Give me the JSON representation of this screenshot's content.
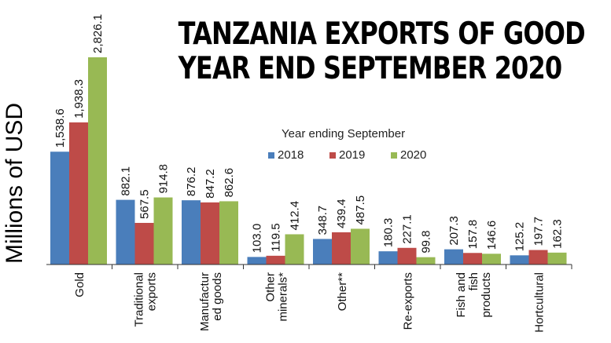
{
  "chart_data": {
    "type": "bar",
    "title": [
      "TANZANIA EXPORTS OF GOOD",
      "YEAR END SEPTEMBER 2020"
    ],
    "xlabel": "",
    "ylabel": "Millions of USD",
    "legend_title": "Year ending September",
    "legend_position": "top-center",
    "grid": false,
    "ylim": [
      0,
      2826.1
    ],
    "categories": [
      [
        "Gold"
      ],
      [
        "Traditional",
        "exports"
      ],
      [
        "Manufactur",
        "ed goods"
      ],
      [
        "Other",
        "minerals*"
      ],
      [
        "Other**"
      ],
      [
        "Re-exports"
      ],
      [
        "Fish and",
        "fish",
        "products"
      ],
      [
        "Hortcultural"
      ]
    ],
    "series": [
      {
        "name": "2018",
        "color": "#4a7ebb",
        "values": [
          1538.6,
          882.1,
          876.2,
          103.0,
          348.7,
          180.3,
          207.3,
          125.2
        ],
        "labels": [
          "1,538.6",
          "882.1",
          "876.2",
          "103.0",
          "348.7",
          "180.3",
          "207.3",
          "125.2"
        ]
      },
      {
        "name": "2019",
        "color": "#be4b48",
        "values": [
          1938.3,
          567.5,
          847.2,
          119.5,
          439.4,
          227.1,
          157.8,
          197.7
        ],
        "labels": [
          "1,938.3",
          "567.5",
          "847.2",
          "119.5",
          "439.4",
          "227.1",
          "157.8",
          "197.7"
        ]
      },
      {
        "name": "2020",
        "color": "#98b954",
        "values": [
          2826.1,
          914.8,
          862.6,
          412.4,
          487.5,
          99.8,
          146.6,
          162.3
        ],
        "labels": [
          "2,826.1",
          "914.8",
          "862.6",
          "412.4",
          "487.5",
          "99.8",
          "146.6",
          "162.3"
        ]
      }
    ]
  }
}
